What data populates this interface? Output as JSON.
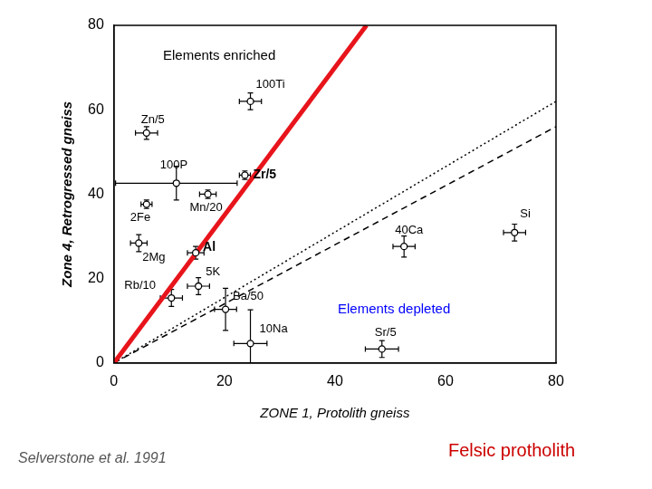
{
  "chart_data": {
    "type": "scatter",
    "x_label": "ZONE 1, Protolith gneiss",
    "y_label": "Zone 4, Retrogressed gneiss",
    "xlim": [
      0,
      80
    ],
    "ylim": [
      0,
      80
    ],
    "xticks": [
      0,
      20,
      40,
      60,
      80
    ],
    "yticks": [
      0,
      20,
      40,
      60,
      80
    ],
    "grid": false,
    "points": {
      "labels": [
        "100Ti",
        "Zn/5",
        "100P",
        "Zr/5",
        "Mn/20",
        "2Fe",
        "2Mg",
        "Al",
        "5K",
        "Rb/10",
        "Ba/50",
        "10Na",
        "40Ca",
        "Si",
        "Sr/5"
      ],
      "x": [
        24.7,
        5.9,
        11.3,
        23.7,
        17.0,
        5.9,
        4.5,
        14.8,
        15.3,
        10.4,
        20.2,
        24.7,
        52.5,
        72.5,
        48.5
      ],
      "y": [
        62.0,
        54.5,
        42.6,
        44.5,
        40.0,
        37.6,
        28.4,
        26.1,
        18.2,
        15.4,
        12.7,
        4.6,
        27.6,
        30.9,
        3.3
      ],
      "xerr": [
        2,
        2,
        11,
        1,
        1.5,
        1,
        1.5,
        1.5,
        2,
        2,
        2,
        3,
        2,
        2,
        3
      ],
      "yerr": [
        2,
        1.5,
        4,
        1,
        1,
        1,
        2,
        1.5,
        2,
        2,
        5,
        8,
        2.5,
        2,
        2
      ],
      "color": "#000000",
      "marker": "circle"
    },
    "lines": [
      {
        "x": [
          0,
          45.7
        ],
        "y": [
          0,
          80
        ],
        "color": "#e8141b",
        "line_style": "solid"
      },
      {
        "x": [
          0,
          80
        ],
        "y": [
          0,
          56
        ],
        "color": "#000000",
        "line_style": "dashed"
      },
      {
        "x": [
          0,
          80
        ],
        "y": [
          0,
          62
        ],
        "color": "#000000",
        "line_style": "dotted"
      }
    ],
    "annotations": [
      {
        "text": "Elements enriched",
        "color": "#000000"
      },
      {
        "text": "Elements depleted",
        "color": "#0000ff"
      },
      {
        "text": "Selverstone et al. 1991",
        "color": "#555555"
      },
      {
        "text": "Felsic protholith",
        "color": "#cc0000"
      }
    ]
  }
}
